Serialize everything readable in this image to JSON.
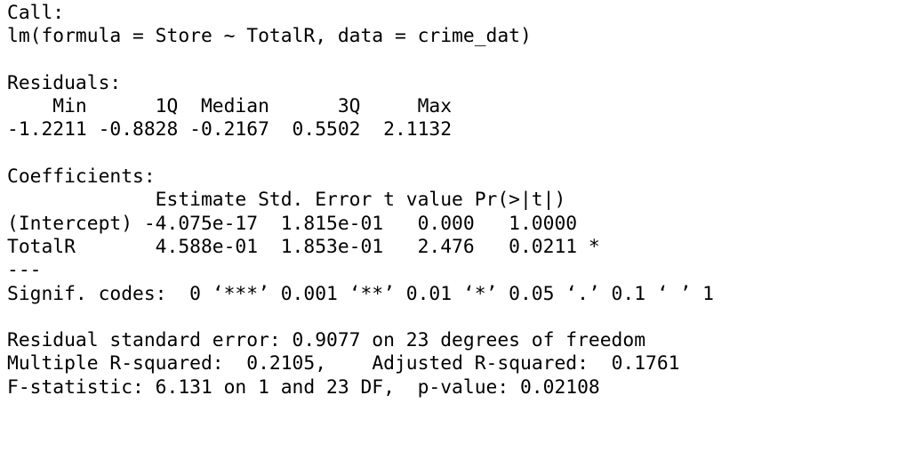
{
  "console": {
    "lines": [
      "Call:",
      "lm(formula = Store ~ TotalR, data = crime_dat)",
      "",
      "Residuals:",
      "    Min      1Q  Median      3Q     Max ",
      "-1.2211 -0.8828 -0.2167  0.5502  2.1132 ",
      "",
      "Coefficients:",
      "             Estimate Std. Error t value Pr(>|t|)  ",
      "(Intercept) -4.075e-17  1.815e-01   0.000   1.0000  ",
      "TotalR       4.588e-01  1.853e-01   2.476   0.0211 *",
      "---",
      "Signif. codes:  0 ‘***’ 0.001 ‘**’ 0.01 ‘*’ 0.05 ‘.’ 0.1 ‘ ’ 1",
      "",
      "Residual standard error: 0.9077 on 23 degrees of freedom",
      "Multiple R-squared:  0.2105,\tAdjusted R-squared:  0.1761 ",
      "F-statistic: 6.131 on 1 and 23 DF,  p-value: 0.02108"
    ]
  }
}
